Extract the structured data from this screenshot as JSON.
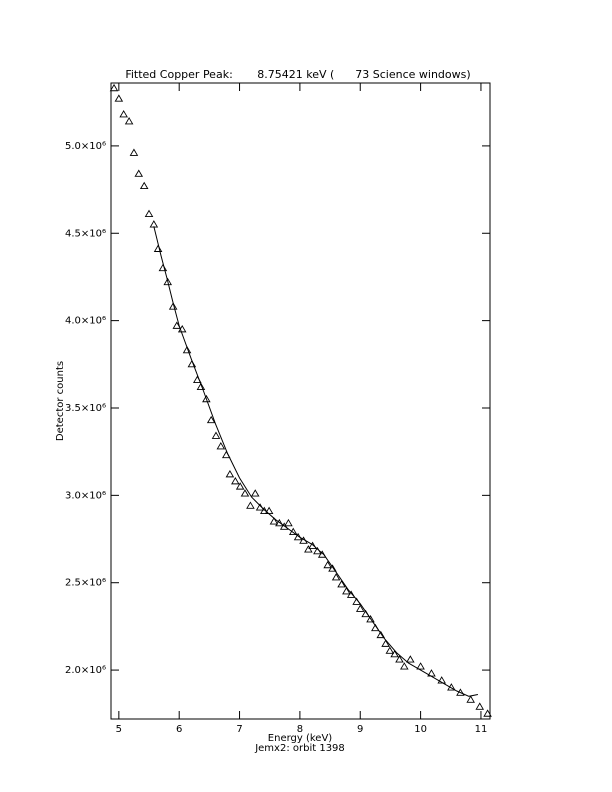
{
  "chart_data": {
    "type": "scatter",
    "title": "Fitted Copper Peak:       8.75421 keV (      73 Science windows)",
    "x_label": "Energy (keV)",
    "caption": "Jemx2: orbit 1398",
    "y_label": "Detector counts",
    "xlim": [
      4.87,
      11.15
    ],
    "ylim": [
      1720000,
      5360000
    ],
    "xticks": [
      5,
      6,
      7,
      8,
      9,
      10,
      11
    ],
    "yticks": [
      {
        "value": 2000000,
        "label": "2.0×10⁶"
      },
      {
        "value": 2500000,
        "label": "2.5×10⁶"
      },
      {
        "value": 3000000,
        "label": "3.0×10⁶"
      },
      {
        "value": 3500000,
        "label": "3.5×10⁶"
      },
      {
        "value": 4000000,
        "label": "4.0×10⁶"
      },
      {
        "value": 4500000,
        "label": "4.5×10⁶"
      },
      {
        "value": 5000000,
        "label": "5.0×10⁶"
      }
    ],
    "grid": false,
    "series": [
      {
        "marker": "triangle",
        "color": "#000000",
        "x": [
          4.92,
          5.0,
          5.08,
          5.17,
          5.25,
          5.33,
          5.42,
          5.5,
          5.58,
          5.65,
          5.73,
          5.81,
          5.9,
          5.96,
          6.05,
          6.13,
          6.21,
          6.3,
          6.36,
          6.45,
          6.53,
          6.61,
          6.69,
          6.78,
          6.84,
          6.93,
          7.01,
          7.09,
          7.18,
          7.26,
          7.34,
          7.41,
          7.49,
          7.57,
          7.66,
          7.74,
          7.81,
          7.89,
          7.97,
          8.06,
          8.14,
          8.21,
          8.29,
          8.37,
          8.46,
          8.54,
          8.6,
          8.69,
          8.77,
          8.85,
          8.94,
          9.0,
          9.09,
          9.17,
          9.25,
          9.34,
          9.42,
          9.49,
          9.57,
          9.65,
          9.73,
          9.83,
          10.0,
          10.18,
          10.35,
          10.51,
          10.66,
          10.83,
          10.98,
          11.11
        ],
        "values": [
          5330000,
          5270000,
          5180000,
          5140000,
          4960000,
          4840000,
          4770000,
          4610000,
          4550000,
          4410000,
          4300000,
          4220000,
          4080000,
          3970000,
          3950000,
          3830000,
          3750000,
          3660000,
          3620000,
          3550000,
          3430000,
          3340000,
          3280000,
          3230000,
          3120000,
          3080000,
          3050000,
          3010000,
          2940000,
          3010000,
          2930000,
          2910000,
          2910000,
          2850000,
          2840000,
          2820000,
          2840000,
          2790000,
          2760000,
          2740000,
          2690000,
          2710000,
          2680000,
          2660000,
          2600000,
          2580000,
          2530000,
          2490000,
          2450000,
          2430000,
          2390000,
          2350000,
          2320000,
          2290000,
          2240000,
          2200000,
          2150000,
          2110000,
          2090000,
          2060000,
          2020000,
          2060000,
          2020000,
          1980000,
          1940000,
          1900000,
          1870000,
          1830000,
          1790000,
          1750000
        ]
      },
      {
        "marker": "line",
        "color": "#000000",
        "x": [
          5.58,
          5.7,
          5.8,
          5.9,
          6.0,
          6.2,
          6.4,
          6.6,
          6.8,
          7.0,
          7.2,
          7.4,
          7.6,
          7.8,
          8.0,
          8.2,
          8.4,
          8.6,
          8.8,
          9.0,
          9.2,
          9.4,
          9.6,
          9.8,
          10.0,
          10.2,
          10.4,
          10.6,
          10.8,
          10.95
        ],
        "values": [
          4540000,
          4370000,
          4240000,
          4100000,
          3970000,
          3780000,
          3600000,
          3410000,
          3240000,
          3100000,
          2990000,
          2920000,
          2860000,
          2810000,
          2760000,
          2720000,
          2660000,
          2560000,
          2460000,
          2380000,
          2280000,
          2180000,
          2100000,
          2040000,
          2000000,
          1960000,
          1920000,
          1880000,
          1850000,
          1860000
        ]
      }
    ]
  }
}
